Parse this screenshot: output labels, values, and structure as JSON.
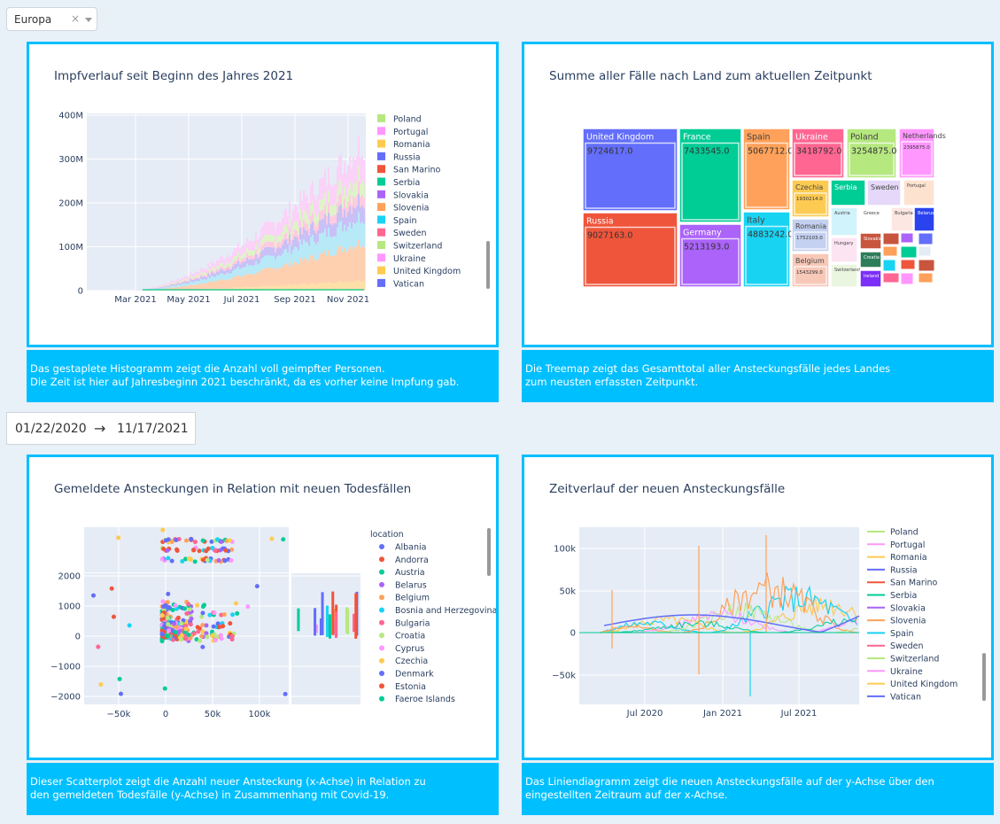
{
  "filter": {
    "value": "Europa",
    "clear": "×"
  },
  "date_range": {
    "start": "01/22/2020",
    "arrow": "→",
    "end": "11/17/2021"
  },
  "panels": {
    "histogram": {
      "title": "Impfverlauf seit Beginn des Jahres 2021",
      "caption": [
        "Das gestaplete Histogramm zeigt die Anzahl voll geimpfter Personen.",
        "Die Zeit ist hier auf Jahresbeginn 2021 beschränkt, da es vorher keine Impfung gab."
      ]
    },
    "treemap": {
      "title": "Summe aller Fälle nach Land zum aktuellen Zeitpunkt",
      "caption": [
        "Die Treemap zeigt das Gesamttotal aller Ansteckungsfälle jedes Landes",
        "zum neusten erfassten Zeitpunkt."
      ]
    },
    "scatter": {
      "title": "Gemeldete Ansteckungen in Relation mit neuen Todesfällen",
      "caption": [
        "Dieser Scatterplot zeigt die Anzahl neuer Ansteckung (x-Achse) in Relation zu",
        "den gemeldeten Todesfälle (y-Achse) in Zusammenhang mit Covid-19."
      ]
    },
    "line": {
      "title": "Zeitverlauf der neuen Ansteckungsfälle",
      "caption": [
        "Das Liniendiagramm zeigt die neuen Ansteckungsfälle auf der y-Achse über den",
        "eingestellten Zeitraum auf der x-Achse."
      ]
    }
  },
  "chart_data": [
    {
      "type": "area",
      "title": "Impfverlauf seit Beginn des Jahres 2021",
      "x_ticks": [
        "Mar 2021",
        "May 2021",
        "Jul 2021",
        "Sep 2021",
        "Nov 2021"
      ],
      "y_ticks": [
        "0",
        "100M",
        "200M",
        "300M",
        "400M"
      ],
      "ylim": [
        0,
        420000000
      ],
      "stacked": true,
      "legend": [
        {
          "name": "Poland",
          "color": "#b6e880"
        },
        {
          "name": "Portugal",
          "color": "#ff97ff"
        },
        {
          "name": "Romania",
          "color": "#fecb52"
        },
        {
          "name": "Russia",
          "color": "#636efa"
        },
        {
          "name": "San Marino",
          "color": "#ef553b"
        },
        {
          "name": "Serbia",
          "color": "#00cc96"
        },
        {
          "name": "Slovakia",
          "color": "#ab63fa"
        },
        {
          "name": "Slovenia",
          "color": "#ffa15a"
        },
        {
          "name": "Spain",
          "color": "#19d3f3"
        },
        {
          "name": "Sweden",
          "color": "#ff6692"
        },
        {
          "name": "Switzerland",
          "color": "#b6e880"
        },
        {
          "name": "Ukraine",
          "color": "#ff97ff"
        },
        {
          "name": "United Kingdom",
          "color": "#fecb52"
        },
        {
          "name": "Vatican",
          "color": "#636efa"
        }
      ]
    },
    {
      "type": "treemap",
      "title": "Summe aller Fälle nach Land zum aktuellen Zeitpunkt",
      "tiles": [
        {
          "label": "United Kingdom",
          "value": "9724617.0",
          "color": "#636efa"
        },
        {
          "label": "Russia",
          "value": "9027163.0",
          "color": "#ef553b"
        },
        {
          "label": "France",
          "value": "7433545.0",
          "color": "#00cc96"
        },
        {
          "label": "Germany",
          "value": "5213193.0",
          "color": "#ab63fa"
        },
        {
          "label": "Spain",
          "value": "5067712.0",
          "color": "#ffa15a"
        },
        {
          "label": "Italy",
          "value": "4883242.0",
          "color": "#19d3f3"
        },
        {
          "label": "Ukraine",
          "value": "3418792.0",
          "color": "#ff6692"
        },
        {
          "label": "Poland",
          "value": "3254875.0",
          "color": "#b6e880"
        },
        {
          "label": "Netherlands",
          "value": "2395875.0",
          "color": "#ff97ff"
        },
        {
          "label": "Czechia",
          "value": "1930214.0",
          "color": "#fecb52"
        },
        {
          "label": "Serbia",
          "value": "",
          "color": "#00cc96"
        },
        {
          "label": "Sweden",
          "value": "",
          "color": "#e5d8f8"
        },
        {
          "label": "Portugal",
          "value": "",
          "color": "#fde3cf"
        },
        {
          "label": "Romania",
          "value": "1752103.0",
          "color": "#c3d0f0"
        },
        {
          "label": "Austria",
          "value": "",
          "color": "#d1f3fb"
        },
        {
          "label": "Greece",
          "value": "",
          "color": "#ffffff"
        },
        {
          "label": "Bulgaria",
          "value": "",
          "color": "#fde7e3"
        },
        {
          "label": "Belarus",
          "value": "",
          "color": "#2a43ee"
        },
        {
          "label": "Belgium",
          "value": "1543299.0",
          "color": "#f8c8b8"
        },
        {
          "label": "Hungary",
          "value": "",
          "color": "#fce4f2"
        },
        {
          "label": "Switzerland",
          "value": "",
          "color": "#eaf6e0"
        },
        {
          "label": "Slovakia",
          "value": "",
          "color": "#c8553d"
        },
        {
          "label": "Croatia",
          "value": "",
          "color": "#2e7d5a"
        },
        {
          "label": "Ireland",
          "value": "",
          "color": "#7b2ff7"
        }
      ]
    },
    {
      "type": "scatter",
      "title": "Gemeldete Ansteckungen in Relation mit neuen Todesfällen",
      "x_ticks": [
        "−50k",
        "0",
        "50k",
        "100k"
      ],
      "y_ticks": [
        "2000",
        "1000",
        "0",
        "−1000",
        "−2000"
      ],
      "legend_title": "location",
      "legend": [
        {
          "name": "Albania",
          "color": "#636efa"
        },
        {
          "name": "Andorra",
          "color": "#ef553b"
        },
        {
          "name": "Austria",
          "color": "#00cc96"
        },
        {
          "name": "Belarus",
          "color": "#ab63fa"
        },
        {
          "name": "Belgium",
          "color": "#ffa15a"
        },
        {
          "name": "Bosnia and Herzegovina",
          "color": "#19d3f3"
        },
        {
          "name": "Bulgaria",
          "color": "#ff6692"
        },
        {
          "name": "Croatia",
          "color": "#b6e880"
        },
        {
          "name": "Cyprus",
          "color": "#ff97ff"
        },
        {
          "name": "Czechia",
          "color": "#fecb52"
        },
        {
          "name": "Denmark",
          "color": "#636efa"
        },
        {
          "name": "Estonia",
          "color": "#ef553b"
        },
        {
          "name": "Faeroe Islands",
          "color": "#00cc96"
        }
      ]
    },
    {
      "type": "line",
      "title": "Zeitverlauf der neuen Ansteckungsfälle",
      "x_ticks": [
        "Jul 2020",
        "Jan 2021",
        "Jul 2021"
      ],
      "y_ticks": [
        "100k",
        "50k",
        "0",
        "−50k"
      ],
      "legend": [
        {
          "name": "Poland",
          "color": "#b6e880"
        },
        {
          "name": "Portugal",
          "color": "#ff97ff"
        },
        {
          "name": "Romania",
          "color": "#fecb52"
        },
        {
          "name": "Russia",
          "color": "#636efa"
        },
        {
          "name": "San Marino",
          "color": "#ef553b"
        },
        {
          "name": "Serbia",
          "color": "#00cc96"
        },
        {
          "name": "Slovakia",
          "color": "#ab63fa"
        },
        {
          "name": "Slovenia",
          "color": "#ffa15a"
        },
        {
          "name": "Spain",
          "color": "#19d3f3"
        },
        {
          "name": "Sweden",
          "color": "#ff6692"
        },
        {
          "name": "Switzerland",
          "color": "#b6e880"
        },
        {
          "name": "Ukraine",
          "color": "#ff97ff"
        },
        {
          "name": "United Kingdom",
          "color": "#fecb52"
        },
        {
          "name": "Vatican",
          "color": "#636efa"
        }
      ]
    }
  ]
}
